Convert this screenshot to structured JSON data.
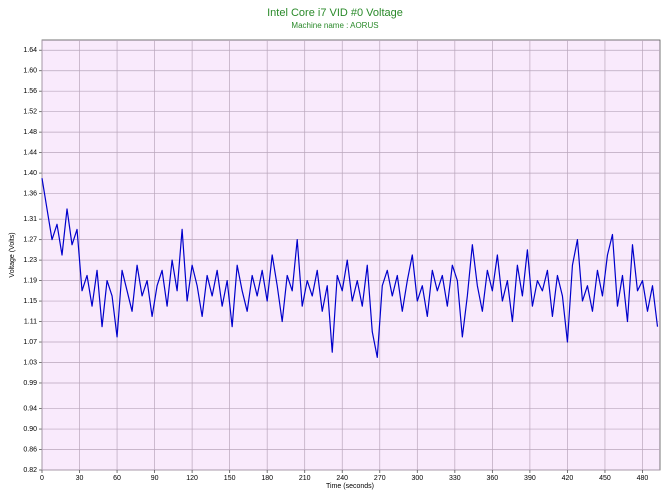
{
  "chart_data": {
    "type": "line",
    "title": "Intel Core i7 VID #0 Voltage",
    "subtitle": "Machine name : AORUS",
    "xlabel": "Time (seconds)",
    "ylabel": "Voltage (Volts)",
    "color": "#0000cc",
    "grid": true,
    "xlim": [
      0,
      494
    ],
    "xticks": [
      0,
      30,
      60,
      90,
      120,
      150,
      180,
      210,
      240,
      270,
      300,
      330,
      360,
      390,
      420,
      450,
      480
    ],
    "ylim": [
      0.82,
      1.66
    ],
    "yticks": [
      0.82,
      0.86,
      {
        "value": 0.9,
        "label": "0.90"
      },
      0.94,
      0.99,
      1.03,
      1.07,
      1.11,
      1.15,
      1.19,
      1.23,
      1.27,
      1.31,
      1.36,
      {
        "value": 1.4,
        "label": "1.40"
      },
      1.44,
      1.48,
      1.52,
      1.56,
      {
        "value": 1.6,
        "label": "1.60"
      },
      1.64
    ],
    "x": [
      0,
      4,
      8,
      12,
      16,
      20,
      24,
      28,
      32,
      36,
      40,
      44,
      48,
      52,
      56,
      60,
      64,
      68,
      72,
      76,
      80,
      84,
      88,
      92,
      96,
      100,
      104,
      108,
      112,
      116,
      120,
      124,
      128,
      132,
      136,
      140,
      144,
      148,
      152,
      156,
      160,
      164,
      168,
      172,
      176,
      180,
      184,
      188,
      192,
      196,
      200,
      204,
      208,
      212,
      216,
      220,
      224,
      228,
      232,
      236,
      240,
      244,
      248,
      252,
      256,
      260,
      264,
      268,
      272,
      276,
      280,
      284,
      288,
      292,
      296,
      300,
      304,
      308,
      312,
      316,
      320,
      324,
      328,
      332,
      336,
      340,
      344,
      348,
      352,
      356,
      360,
      364,
      368,
      372,
      376,
      380,
      384,
      388,
      392,
      396,
      400,
      404,
      408,
      412,
      416,
      420,
      424,
      428,
      432,
      436,
      440,
      444,
      448,
      452,
      456,
      460,
      464,
      468,
      472,
      476,
      480,
      484,
      488,
      492
    ],
    "values": [
      1.39,
      1.33,
      1.27,
      1.3,
      1.24,
      1.33,
      1.26,
      1.29,
      1.17,
      1.2,
      1.14,
      1.21,
      1.1,
      1.19,
      1.16,
      1.08,
      1.21,
      1.17,
      1.13,
      1.22,
      1.16,
      1.19,
      1.12,
      1.18,
      1.21,
      1.14,
      1.23,
      1.17,
      1.29,
      1.15,
      1.22,
      1.18,
      1.12,
      1.2,
      1.16,
      1.21,
      1.14,
      1.19,
      1.1,
      1.22,
      1.17,
      1.13,
      1.2,
      1.16,
      1.21,
      1.15,
      1.24,
      1.18,
      1.11,
      1.2,
      1.17,
      1.27,
      1.14,
      1.19,
      1.16,
      1.21,
      1.13,
      1.18,
      1.05,
      1.2,
      1.17,
      1.23,
      1.15,
      1.19,
      1.14,
      1.22,
      1.09,
      1.04,
      1.18,
      1.21,
      1.16,
      1.2,
      1.13,
      1.19,
      1.24,
      1.15,
      1.18,
      1.12,
      1.21,
      1.17,
      1.2,
      1.14,
      1.22,
      1.19,
      1.08,
      1.16,
      1.26,
      1.18,
      1.13,
      1.21,
      1.17,
      1.24,
      1.15,
      1.19,
      1.11,
      1.22,
      1.16,
      1.25,
      1.14,
      1.19,
      1.17,
      1.21,
      1.12,
      1.2,
      1.16,
      1.07,
      1.22,
      1.27,
      1.15,
      1.18,
      1.13,
      1.21,
      1.16,
      1.24,
      1.28,
      1.14,
      1.2,
      1.11,
      1.26,
      1.17,
      1.19,
      1.13,
      1.18,
      1.1
    ]
  }
}
